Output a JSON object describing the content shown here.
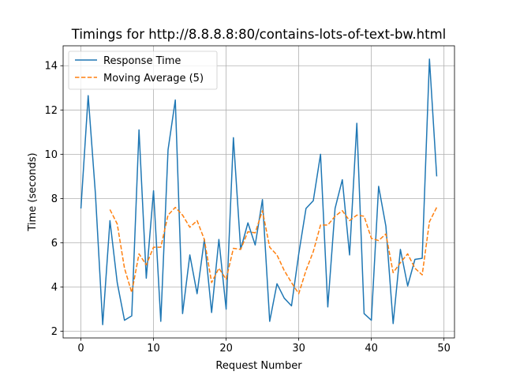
{
  "chart_data": {
    "type": "line",
    "title": "Timings for http://8.8.8.8:80/contains-lots-of-text-bw.html",
    "xlabel": "Request Number",
    "ylabel": "Time (seconds)",
    "xlim": [
      -2.45,
      51.45
    ],
    "ylim": [
      1.7,
      14.9
    ],
    "xticks": [
      0,
      10,
      20,
      30,
      40,
      50
    ],
    "yticks": [
      2,
      4,
      6,
      8,
      10,
      12,
      14
    ],
    "grid": true,
    "legend_position": "top-left",
    "series": [
      {
        "name": "Response Time",
        "color": "#1f77b4",
        "style": "solid",
        "x": [
          0,
          1,
          2,
          3,
          4,
          5,
          6,
          7,
          8,
          9,
          10,
          11,
          12,
          13,
          14,
          15,
          16,
          17,
          18,
          19,
          20,
          21,
          22,
          23,
          24,
          25,
          26,
          27,
          28,
          29,
          30,
          31,
          32,
          33,
          34,
          35,
          36,
          37,
          38,
          39,
          40,
          41,
          42,
          43,
          44,
          45,
          46,
          47,
          48,
          49
        ],
        "values": [
          7.55,
          12.65,
          8.2,
          2.3,
          7.0,
          4.2,
          2.5,
          2.7,
          11.1,
          4.4,
          8.35,
          2.45,
          10.2,
          12.45,
          2.8,
          5.45,
          3.7,
          6.15,
          2.85,
          6.15,
          3.0,
          10.75,
          5.7,
          6.9,
          5.9,
          7.95,
          2.45,
          4.15,
          3.5,
          3.15,
          5.5,
          7.55,
          7.9,
          10.0,
          3.1,
          7.55,
          8.85,
          5.45,
          11.4,
          2.8,
          2.5,
          8.55,
          6.75,
          2.35,
          5.7,
          4.05,
          5.25,
          5.3,
          14.3,
          9.0
        ]
      },
      {
        "name": "Moving Average (5)",
        "color": "#ff7f0e",
        "style": "dashed",
        "x": [
          4,
          5,
          6,
          7,
          8,
          9,
          10,
          11,
          12,
          13,
          14,
          15,
          16,
          17,
          18,
          19,
          20,
          21,
          22,
          23,
          24,
          25,
          26,
          27,
          28,
          29,
          30,
          31,
          32,
          33,
          34,
          35,
          36,
          37,
          38,
          39,
          40,
          41,
          42,
          43,
          44,
          45,
          46,
          47,
          48,
          49
        ],
        "values": [
          7.5,
          6.85,
          4.85,
          3.75,
          5.5,
          5.0,
          5.8,
          5.8,
          7.25,
          7.6,
          7.25,
          6.7,
          7.0,
          6.15,
          4.2,
          4.85,
          4.35,
          5.75,
          5.7,
          6.5,
          6.45,
          7.45,
          5.8,
          5.45,
          4.75,
          4.2,
          3.7,
          4.75,
          5.6,
          6.8,
          6.8,
          7.2,
          7.45,
          7.0,
          7.25,
          7.2,
          6.2,
          6.1,
          6.4,
          4.65,
          5.1,
          5.5,
          4.85,
          4.55,
          6.95,
          7.6
        ]
      }
    ]
  }
}
